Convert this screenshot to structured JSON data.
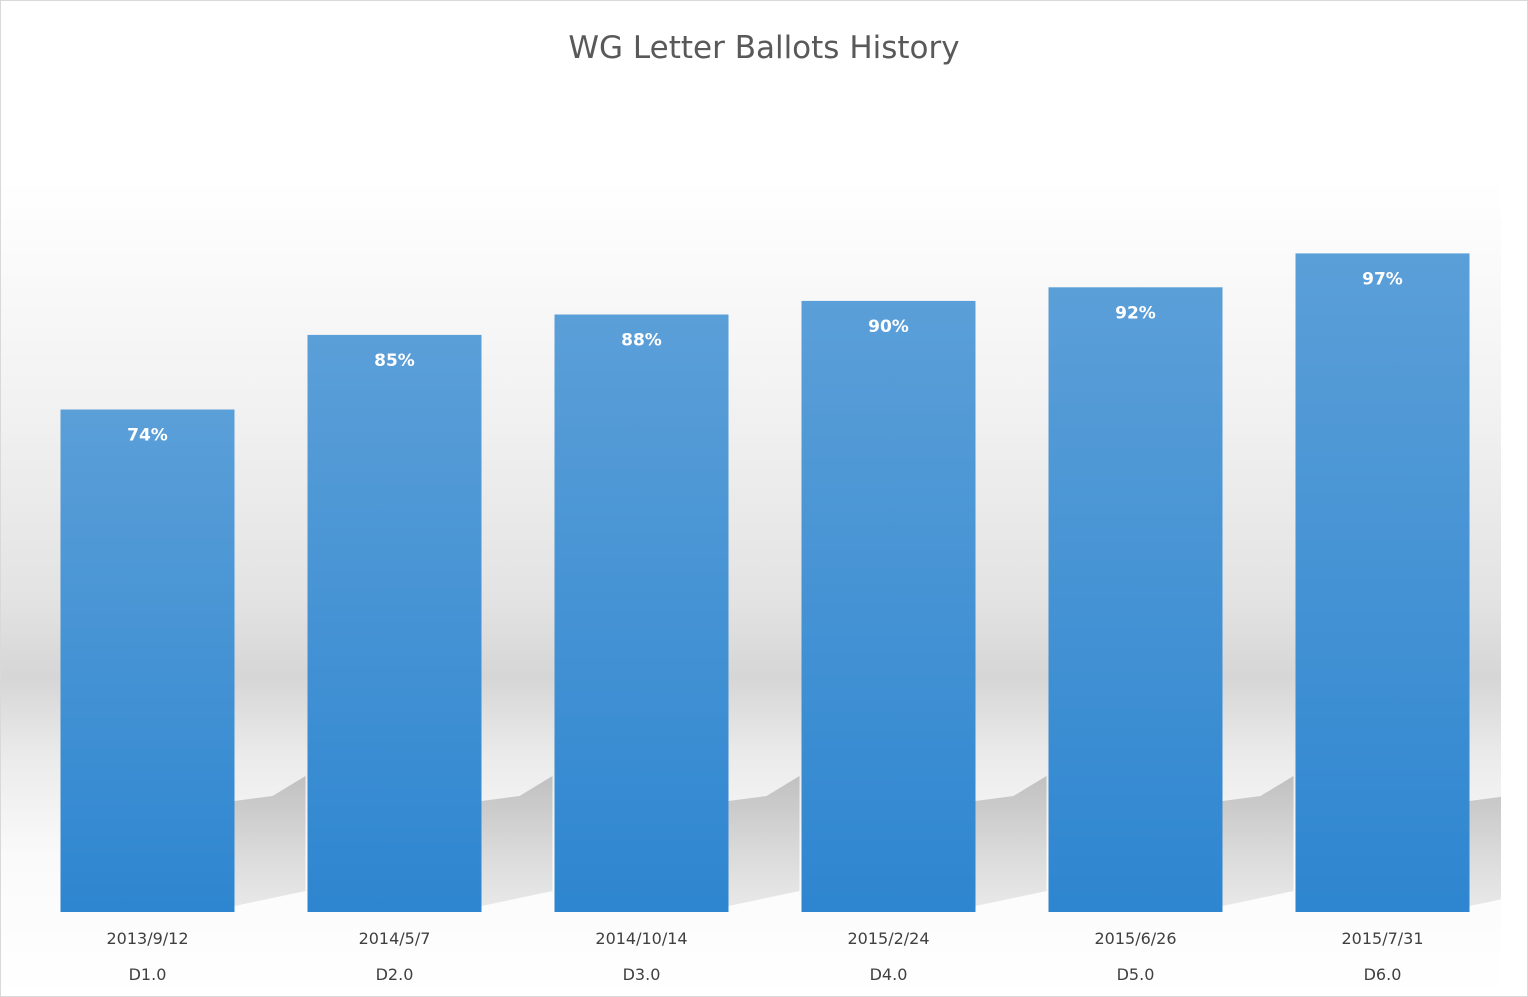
{
  "chart_data": {
    "type": "bar",
    "title": "WG Letter Ballots History",
    "xlabel": "",
    "ylabel": "",
    "categories": [
      [
        "2013/9/12",
        "D1.0"
      ],
      [
        "2014/5/7",
        "D2.0"
      ],
      [
        "2014/10/14",
        "D3.0"
      ],
      [
        "2015/2/24",
        "D4.0"
      ],
      [
        "2015/6/26",
        "D5.0"
      ],
      [
        "2015/7/31",
        "D6.0"
      ]
    ],
    "values": [
      74,
      85,
      88,
      90,
      92,
      97
    ],
    "data_labels": [
      "74%",
      "85%",
      "88%",
      "90%",
      "92%",
      "97%"
    ],
    "ylim": [
      0,
      100
    ],
    "grid": false,
    "legend": "none",
    "colors": {
      "bar_top": "#5b9fd8",
      "bar_bottom": "#2e86d0",
      "title": "#595959",
      "tick": "#404040",
      "data_label": "#ffffff"
    }
  }
}
